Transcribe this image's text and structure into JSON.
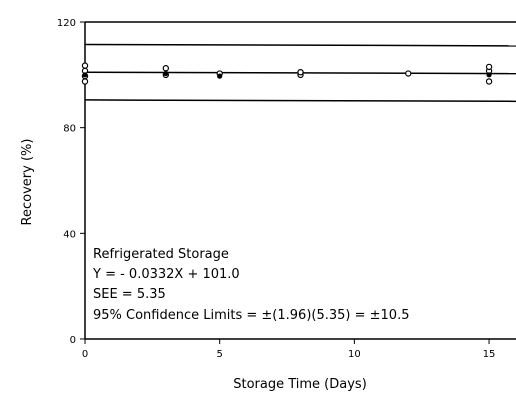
{
  "chart_data": {
    "type": "scatter",
    "title": "",
    "xlabel": "Storage Time (Days)",
    "ylabel": "Recovery (%)",
    "xlim": [
      0,
      16
    ],
    "ylim": [
      0,
      120
    ],
    "xticks": [
      0,
      5,
      10,
      15
    ],
    "yticks": [
      0,
      40,
      80,
      120
    ],
    "xtick_labels": [
      "0",
      "5",
      "10",
      "15"
    ],
    "ytick_labels": [
      "0",
      "40",
      "80",
      "120"
    ],
    "grid": false,
    "series": [
      {
        "marker": "open-circle",
        "points": [
          {
            "x": 0,
            "y": 97.5
          },
          {
            "x": 0,
            "y": 99.5
          },
          {
            "x": 0,
            "y": 101.5
          },
          {
            "x": 0,
            "y": 103.5
          },
          {
            "x": 3,
            "y": 100
          },
          {
            "x": 3,
            "y": 102.5
          },
          {
            "x": 5,
            "y": 100.5
          },
          {
            "x": 8,
            "y": 100
          },
          {
            "x": 8,
            "y": 101
          },
          {
            "x": 12,
            "y": 100.5
          },
          {
            "x": 15,
            "y": 97.5
          },
          {
            "x": 15,
            "y": 101.5
          },
          {
            "x": 15,
            "y": 103
          }
        ]
      },
      {
        "marker": "filled-dot",
        "points": [
          {
            "x": 0,
            "y": 100
          },
          {
            "x": 3,
            "y": 100.5
          },
          {
            "x": 5,
            "y": 99.5
          },
          {
            "x": 15,
            "y": 100
          }
        ]
      }
    ],
    "lines": [
      {
        "role": "regression",
        "intercept": 101.0,
        "slope": -0.0332
      },
      {
        "role": "upper-limit",
        "intercept": 111.5,
        "slope": -0.0332
      },
      {
        "role": "lower-limit",
        "intercept": 90.5,
        "slope": -0.0332
      },
      {
        "role": "reference",
        "intercept": 120,
        "slope": 0
      }
    ],
    "annotations": [
      "Refrigerated Storage",
      "Y = - 0.0332X + 101.0",
      "SEE = 5.35",
      "95% Confidence Limits = ±(1.96)(5.35) = ±10.5"
    ]
  }
}
